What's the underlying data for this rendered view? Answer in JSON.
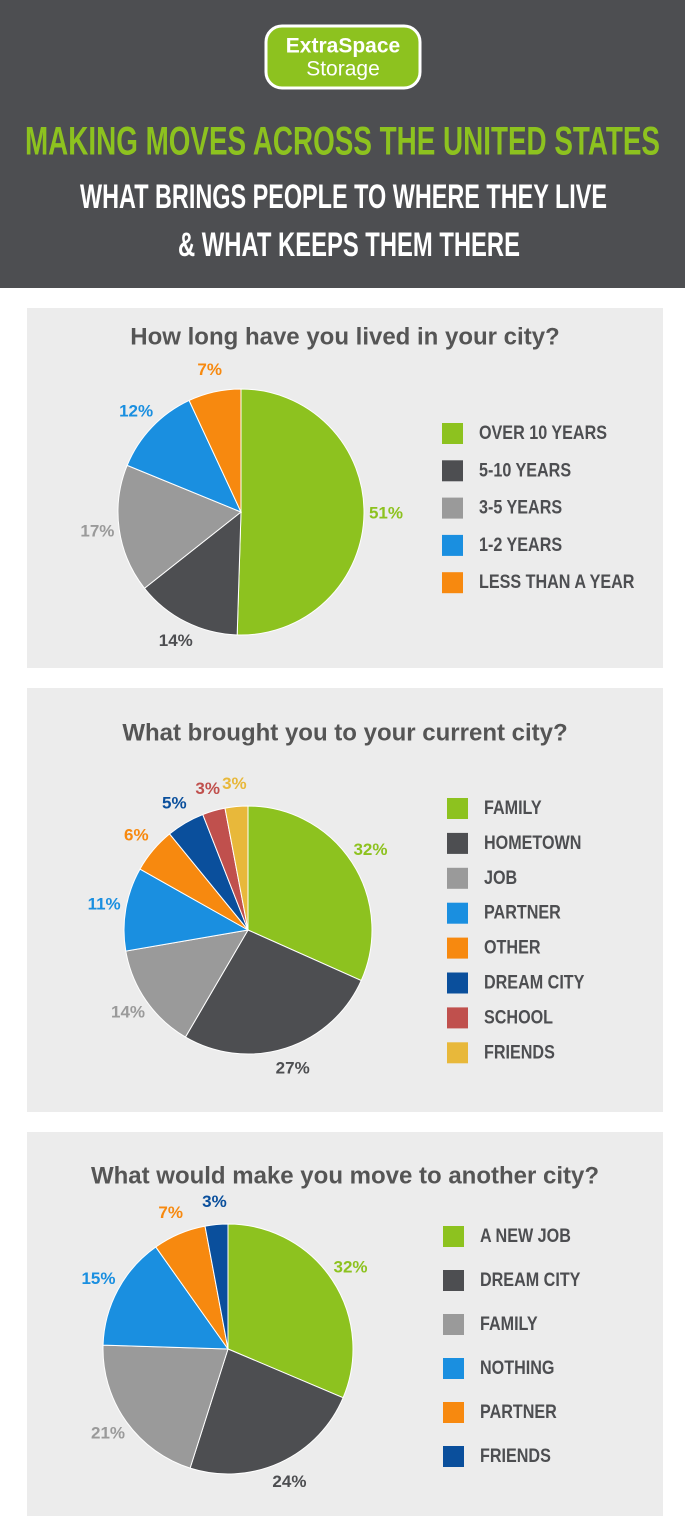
{
  "header": {
    "logo": {
      "line1": "ExtraSpace",
      "line2": "Storage"
    },
    "title": "MAKING MOVES ACROSS THE UNITED STATES",
    "subtitle": [
      "WHAT BRINGS PEOPLE TO WHERE THEY LIVE",
      "& WHAT KEEPS THEM THERE"
    ]
  },
  "chart_data": [
    {
      "type": "pie",
      "title": "How long have you lived in your city?",
      "categories": [
        "OVER 10 YEARS",
        "5-10 YEARS",
        "3-5 YEARS",
        "1-2 YEARS",
        "LESS THAN A YEAR"
      ],
      "values": [
        51,
        14,
        17,
        12,
        7
      ],
      "value_labels": [
        "51%",
        "14%",
        "17%",
        "12%",
        "7%"
      ],
      "colors": [
        "#8dc21f",
        "#4d4e51",
        "#9a9a9a",
        "#1a8fe0",
        "#f7890f"
      ]
    },
    {
      "type": "pie",
      "title": "What brought you to your current city?",
      "categories": [
        "FAMILY",
        "HOMETOWN",
        "JOB",
        "PARTNER",
        "OTHER",
        "DREAM CITY",
        "SCHOOL",
        "FRIENDS"
      ],
      "values": [
        32,
        27,
        14,
        11,
        6,
        5,
        3,
        3
      ],
      "value_labels": [
        "32%",
        "27%",
        "14%",
        "11%",
        "6%",
        "5%",
        "3%",
        "3%"
      ],
      "colors": [
        "#8dc21f",
        "#4d4e51",
        "#9a9a9a",
        "#1a8fe0",
        "#f7890f",
        "#0a4f9c",
        "#c0504d",
        "#e8b83a"
      ]
    },
    {
      "type": "pie",
      "title": "What would make you move to another city?",
      "categories": [
        "A NEW JOB",
        "DREAM CITY",
        "FAMILY",
        "NOTHING",
        "PARTNER",
        "FRIENDS"
      ],
      "values": [
        32,
        24,
        21,
        15,
        7,
        3
      ],
      "value_labels": [
        "32%",
        "24%",
        "21%",
        "15%",
        "7%",
        "3%"
      ],
      "colors": [
        "#8dc21f",
        "#4d4e51",
        "#9a9a9a",
        "#1a8fe0",
        "#f7890f",
        "#0a4f9c"
      ]
    }
  ]
}
